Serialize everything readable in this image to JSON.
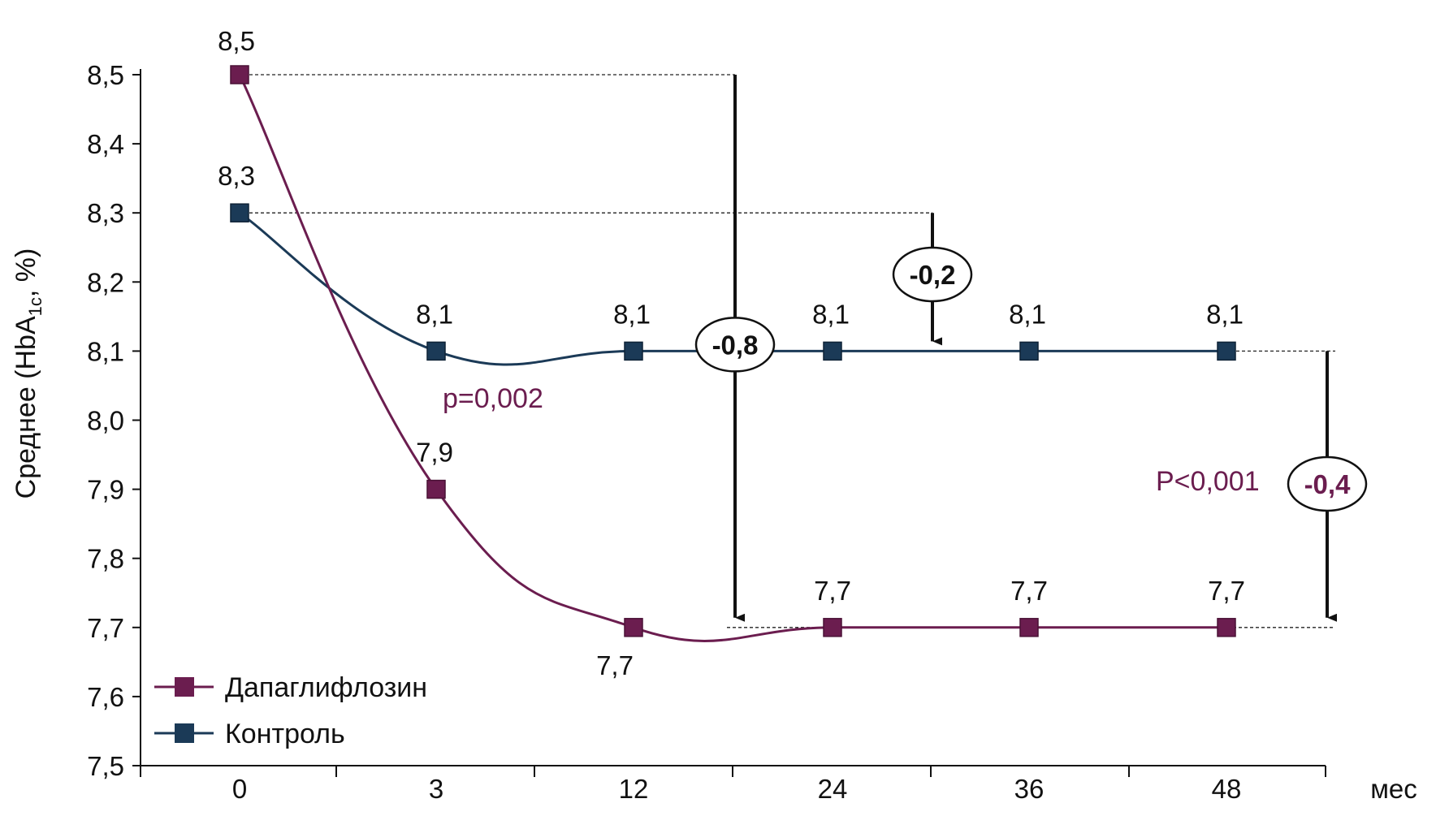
{
  "chart_data": {
    "type": "line",
    "ylabel_main": "Среднее (HbA",
    "ylabel_sub": "1c",
    "ylabel_tail": ", %)",
    "x_unit": "мес",
    "categories": [
      "0",
      "3",
      "12",
      "24",
      "36",
      "48"
    ],
    "yticks": [
      "7,5",
      "7,6",
      "7,7",
      "7,8",
      "7,9",
      "8,0",
      "8,1",
      "8,2",
      "8,3",
      "8,4",
      "8,5"
    ],
    "ylim": [
      7.5,
      8.5
    ],
    "grid": false,
    "legend_position": "bottom-left",
    "series": [
      {
        "name": "Дапаглифлозин",
        "color": "#6b1d4f",
        "values": [
          8.5,
          7.9,
          7.7,
          7.7,
          7.7,
          7.7
        ],
        "labels": [
          "8,5",
          "7,9",
          "7,7",
          "7,7",
          "7,7",
          "7,7"
        ]
      },
      {
        "name": "Контроль",
        "color": "#1b3a57",
        "values": [
          8.3,
          8.1,
          8.1,
          8.1,
          8.1,
          8.1
        ],
        "labels": [
          "8,3",
          "8,1",
          "8,1",
          "8,1",
          "8,1",
          "8,1"
        ]
      }
    ],
    "annotations": {
      "p_value_early": "p=0,002",
      "p_value_late": "P<0,001",
      "diff_dapa": "-0,8",
      "diff_control": "-0,2",
      "diff_between": "-0,4"
    }
  }
}
